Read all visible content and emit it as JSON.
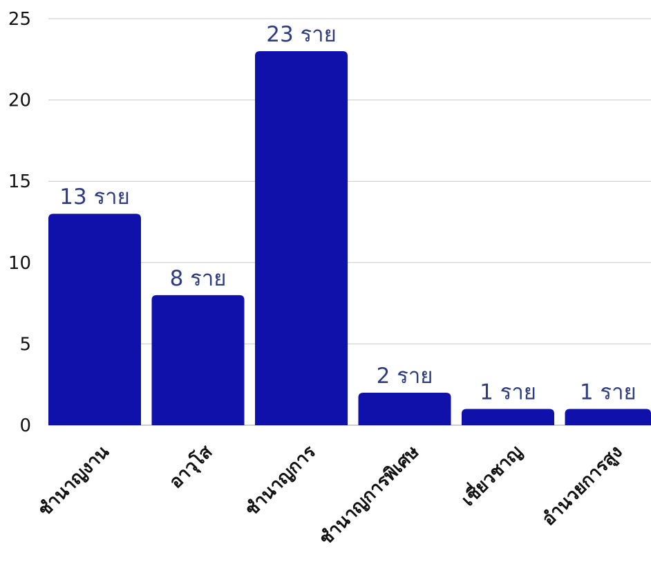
{
  "chart_data": {
    "type": "bar",
    "title": "",
    "xlabel": "",
    "ylabel": "",
    "categories": [
      "ชำนาญงาน",
      "อาวุโส",
      "ชำนาญการ",
      "ชำนาญการพิเศษ",
      "เชี่ยวชาญ",
      "อำนวยการสูง"
    ],
    "values": [
      13,
      8,
      23,
      2,
      1,
      1
    ],
    "data_labels": [
      "13 ราย",
      "8 ราย",
      "23 ราย",
      "2 ราย",
      "1 ราย",
      "1 ราย"
    ],
    "ylim": [
      0,
      25
    ],
    "yticks": [
      0,
      5,
      10,
      15,
      20,
      25
    ],
    "grid": true,
    "legend": "none",
    "colors": {
      "bar": "#1010aa",
      "data_label": "#2d3c82",
      "gridline": "#c8c8c8"
    }
  }
}
